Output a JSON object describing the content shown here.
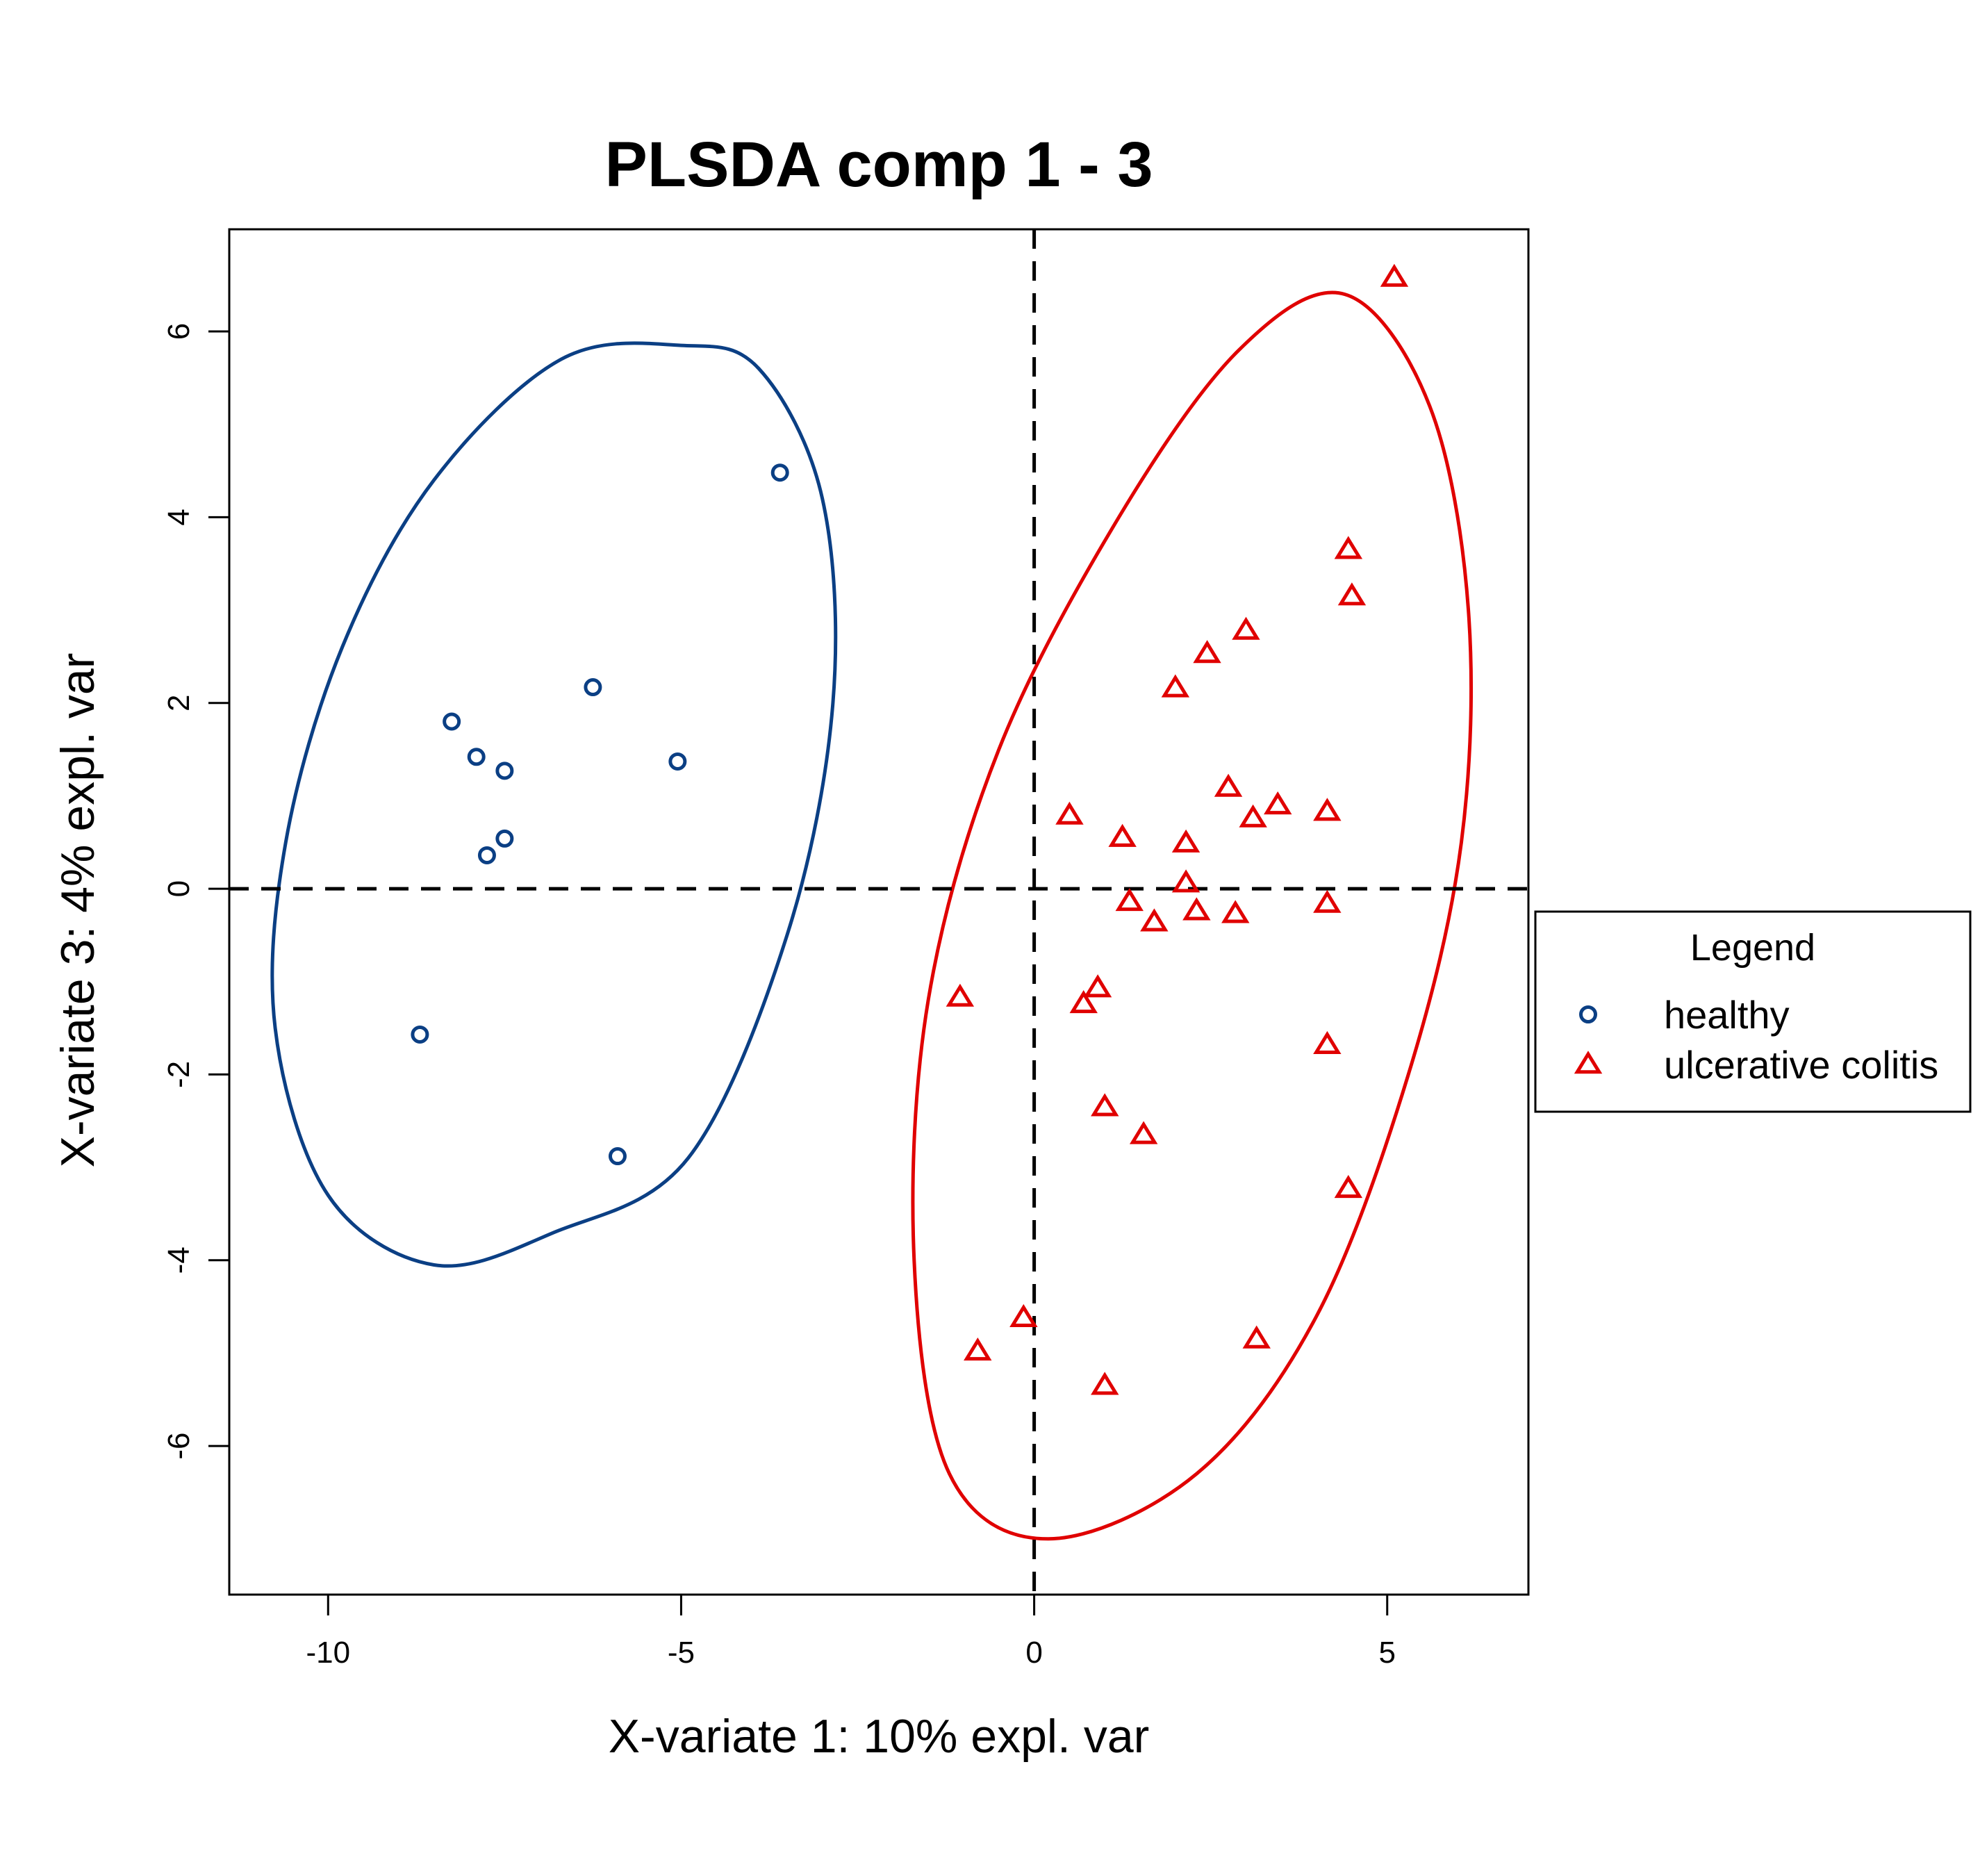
{
  "chart_data": {
    "type": "scatter",
    "title": "PLSDA comp 1 - 3",
    "xlabel": "X-variate 1: 10% expl. var",
    "ylabel": "X-variate 3: 4% expl. var",
    "xlim": [
      -11.4,
      7
    ],
    "ylim": [
      -7.6,
      7.1
    ],
    "xticks": [
      -10,
      -5,
      0,
      5
    ],
    "yticks": [
      -6,
      -4,
      -2,
      0,
      2,
      4,
      6
    ],
    "xtick_labels": [
      "-10",
      "-5",
      "0",
      "5"
    ],
    "ytick_labels": [
      "-6",
      "-4",
      "-2",
      "0",
      "2",
      "4",
      "6"
    ],
    "reference_lines": {
      "x": 0,
      "y": 0,
      "style": "dashed"
    },
    "legend": {
      "title": "Legend",
      "position": "right"
    },
    "series": [
      {
        "name": "healthy",
        "marker": "circle",
        "color": "#0B3F84",
        "points": [
          [
            -3.6,
            4.48
          ],
          [
            -6.25,
            2.17
          ],
          [
            -8.25,
            1.8
          ],
          [
            -7.9,
            1.42
          ],
          [
            -7.5,
            1.27
          ],
          [
            -5.05,
            1.37
          ],
          [
            -7.5,
            0.54
          ],
          [
            -7.75,
            0.36
          ],
          [
            -8.7,
            -1.57
          ],
          [
            -5.9,
            -2.88
          ]
        ],
        "ellipse": {
          "center": [
            -5.0,
            0.9
          ],
          "points": [
            [
              -5.0,
              5.85
            ],
            [
              -3.9,
              5.6
            ],
            [
              -3.0,
              4.2
            ],
            [
              -2.85,
              2.0
            ],
            [
              -3.5,
              -0.5
            ],
            [
              -4.9,
              -2.9
            ],
            [
              -6.8,
              -3.7
            ],
            [
              -8.5,
              -4.05
            ],
            [
              -10.0,
              -3.3
            ],
            [
              -10.75,
              -1.5
            ],
            [
              -10.6,
              0.5
            ],
            [
              -9.8,
              2.6
            ],
            [
              -8.5,
              4.4
            ],
            [
              -6.7,
              5.7
            ]
          ]
        }
      },
      {
        "name": "ulcerative colitis",
        "marker": "triangle",
        "color": "#E00000",
        "points": [
          [
            5.1,
            6.58
          ],
          [
            4.45,
            3.65
          ],
          [
            4.5,
            3.15
          ],
          [
            3.0,
            2.78
          ],
          [
            2.45,
            2.53
          ],
          [
            2.0,
            2.16
          ],
          [
            2.75,
            1.09
          ],
          [
            3.45,
            0.9
          ],
          [
            3.1,
            0.76
          ],
          [
            4.15,
            0.83
          ],
          [
            0.5,
            0.79
          ],
          [
            1.25,
            0.55
          ],
          [
            2.15,
            0.49
          ],
          [
            2.15,
            0.06
          ],
          [
            1.35,
            -0.14
          ],
          [
            2.3,
            -0.24
          ],
          [
            2.85,
            -0.27
          ],
          [
            4.15,
            -0.16
          ],
          [
            1.7,
            -0.36
          ],
          [
            -1.05,
            -1.17
          ],
          [
            0.9,
            -1.07
          ],
          [
            0.7,
            -1.24
          ],
          [
            4.15,
            -1.68
          ],
          [
            1.0,
            -2.35
          ],
          [
            1.55,
            -2.65
          ],
          [
            4.45,
            -3.23
          ],
          [
            -0.15,
            -4.62
          ],
          [
            -0.8,
            -4.98
          ],
          [
            3.15,
            -4.85
          ],
          [
            1.0,
            -5.35
          ]
        ],
        "ellipse": {
          "center": [
            2.35,
            -0.3
          ],
          "points": [
            [
              4.4,
              6.4
            ],
            [
              5.6,
              5.2
            ],
            [
              6.15,
              3.0
            ],
            [
              6.05,
              0.5
            ],
            [
              5.3,
              -2.0
            ],
            [
              4.0,
              -4.6
            ],
            [
              2.3,
              -6.3
            ],
            [
              0.2,
              -7.0
            ],
            [
              -1.2,
              -6.3
            ],
            [
              -1.7,
              -4.0
            ],
            [
              -1.5,
              -1.2
            ],
            [
              -0.5,
              1.5
            ],
            [
              1.2,
              4.0
            ],
            [
              2.9,
              5.8
            ]
          ]
        }
      }
    ]
  }
}
